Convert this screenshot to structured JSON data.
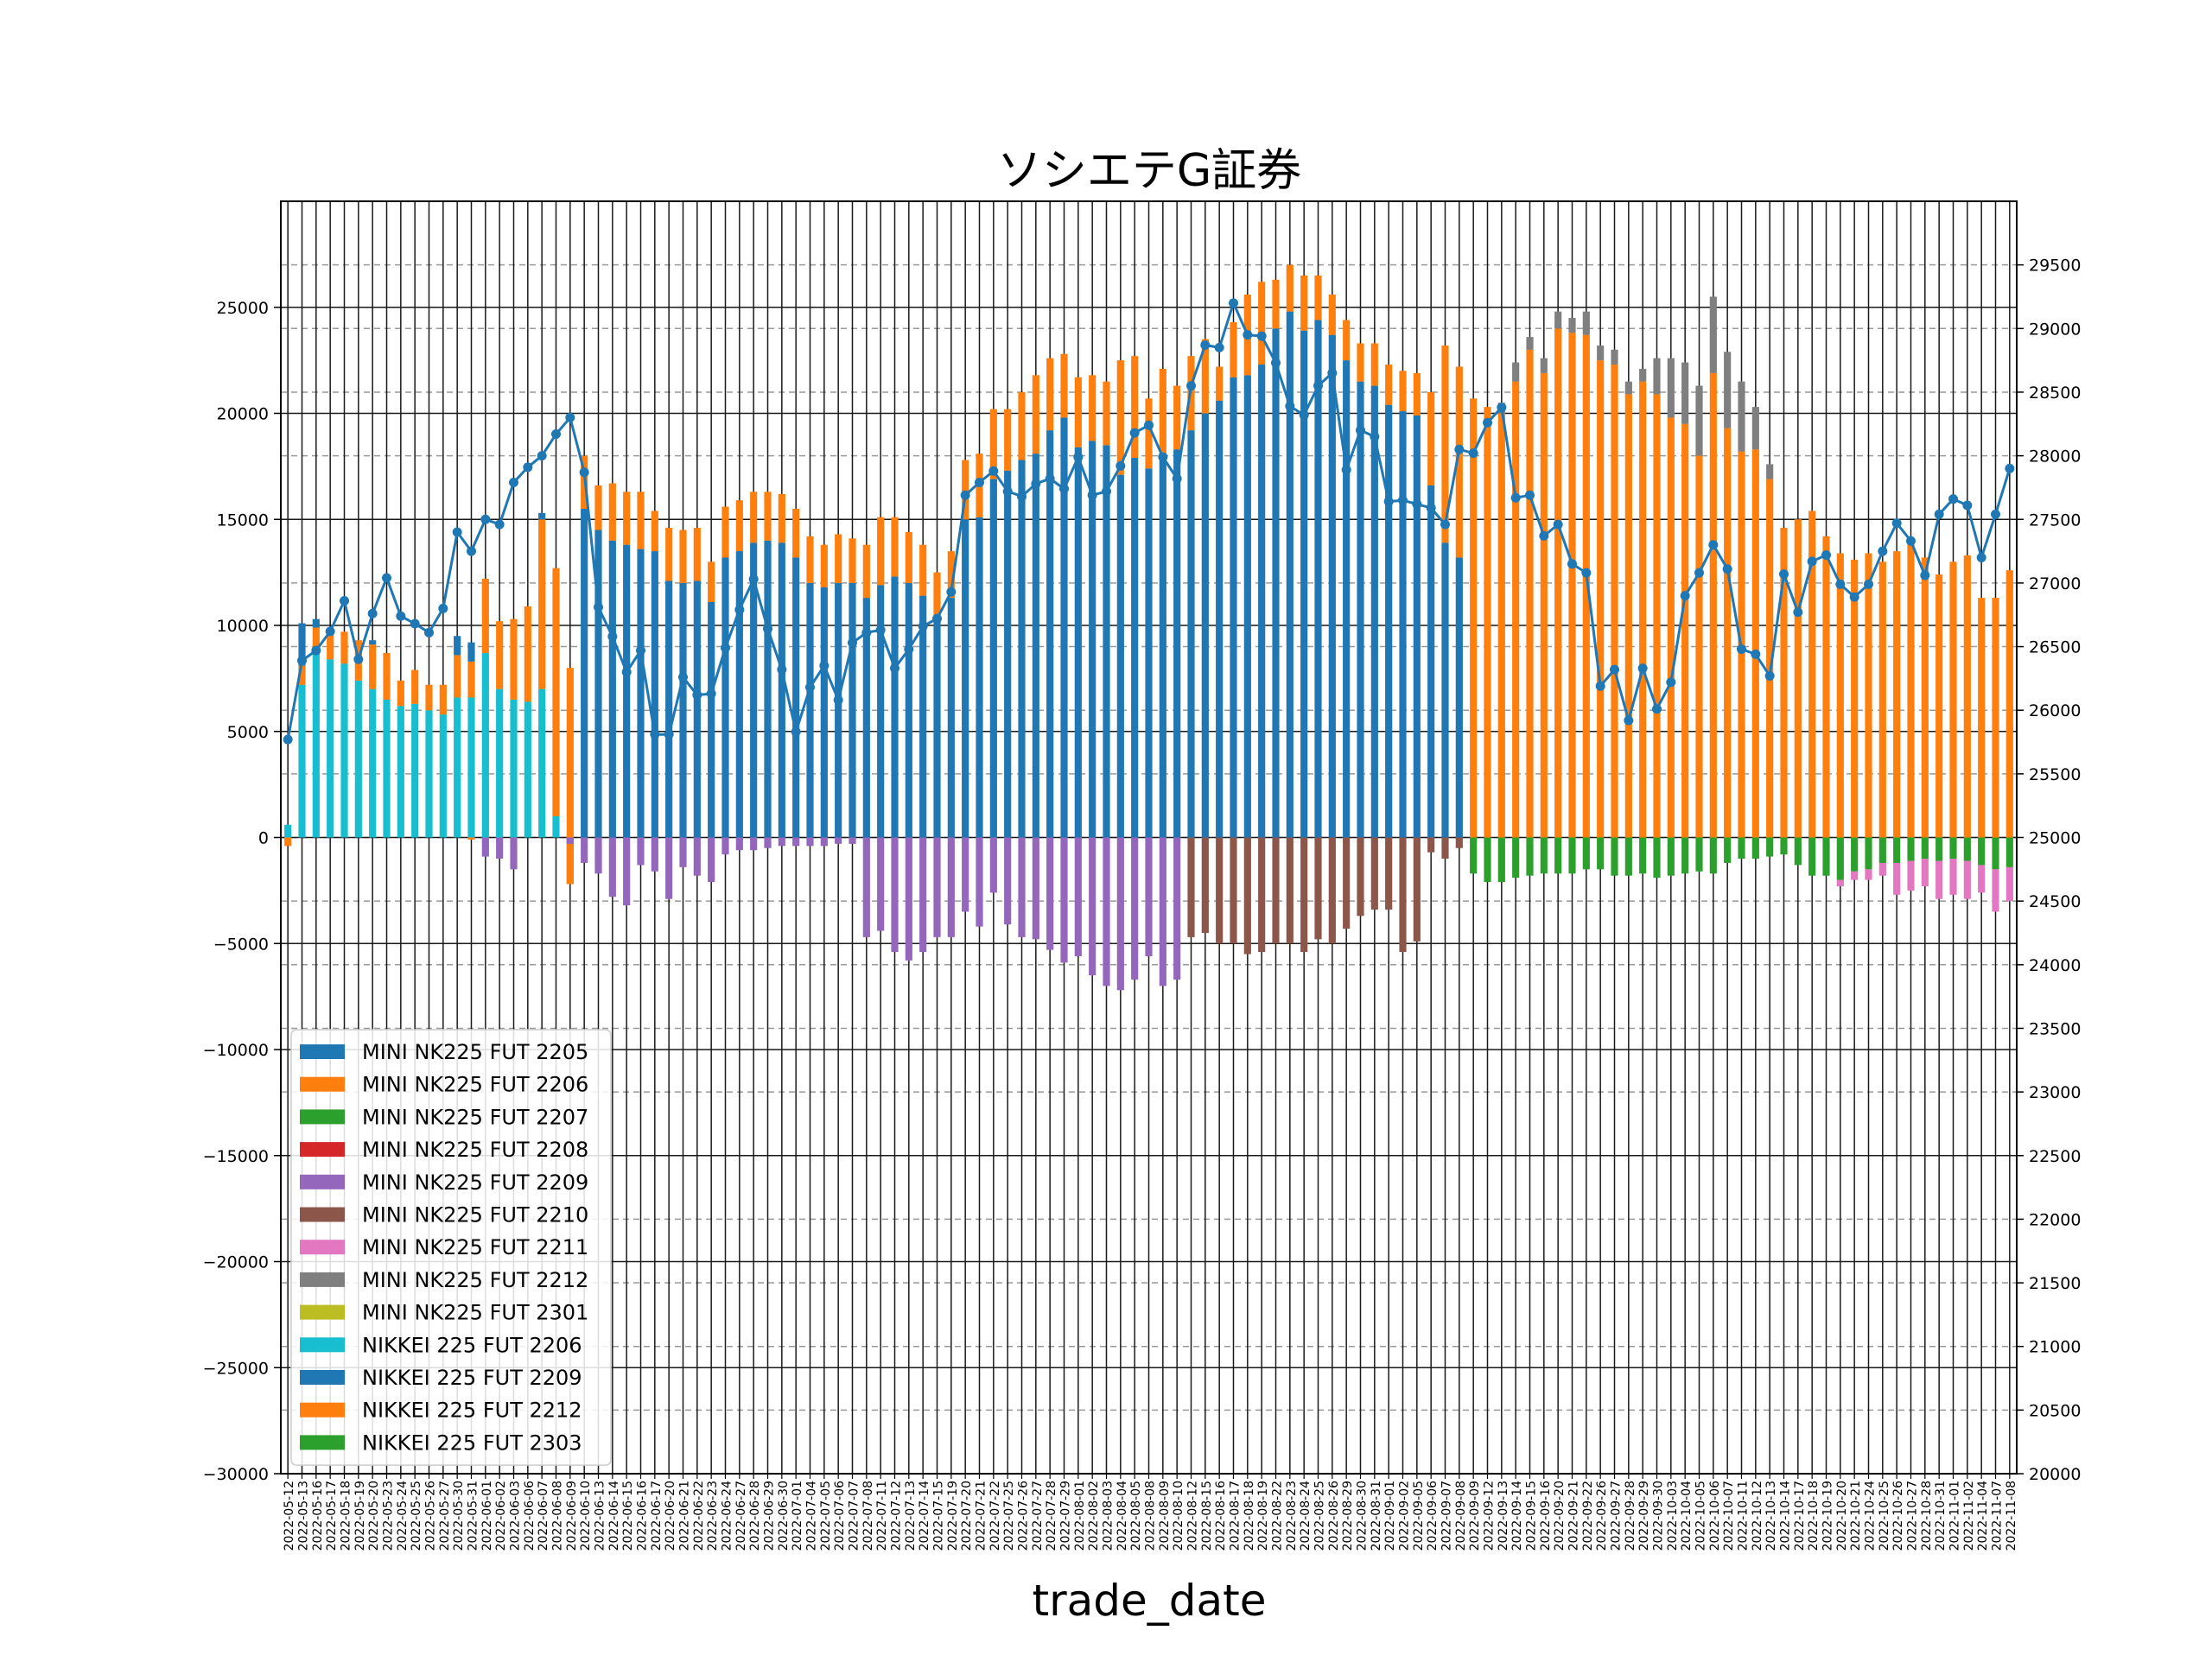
{
  "chart_data": {
    "type": "bar",
    "title": "ソシエテG証券",
    "xlabel": "trade_date",
    "ylabel": "",
    "ylim": [
      -30000,
      30000
    ],
    "yticks": [
      -30000,
      -25000,
      -20000,
      -15000,
      -10000,
      -5000,
      0,
      5000,
      10000,
      15000,
      20000,
      25000
    ],
    "y2lim": [
      20000,
      30000
    ],
    "y2ticks": [
      20000,
      20500,
      21000,
      21500,
      22000,
      22500,
      23000,
      23500,
      24000,
      24500,
      25000,
      25500,
      26000,
      26500,
      27000,
      27500,
      28000,
      28500,
      29000,
      29500
    ],
    "grid": true,
    "stacked": true,
    "legend_position": "lower-left",
    "colors": {
      "MINI NK225 FUT 2205": "#1f77b4",
      "MINI NK225 FUT 2206": "#ff7f0e",
      "MINI NK225 FUT 2207": "#2ca02c",
      "MINI NK225 FUT 2208": "#d62728",
      "MINI NK225 FUT 2209": "#9467bd",
      "MINI NK225 FUT 2210": "#8c564b",
      "MINI NK225 FUT 2211": "#e377c2",
      "MINI NK225 FUT 2212": "#7f7f7f",
      "MINI NK225 FUT 2301": "#bcbd22",
      "NIKKEI 225 FUT 2206": "#17becf",
      "NIKKEI 225 FUT 2209": "#1f77b4",
      "NIKKEI 225 FUT 2212": "#ff7f0e",
      "NIKKEI 225 FUT 2303": "#2ca02c",
      "line": "#1f77b4"
    },
    "legend": [
      "MINI NK225 FUT 2205",
      "MINI NK225 FUT 2206",
      "MINI NK225 FUT 2207",
      "MINI NK225 FUT 2208",
      "MINI NK225 FUT 2209",
      "MINI NK225 FUT 2210",
      "MINI NK225 FUT 2211",
      "MINI NK225 FUT 2212",
      "MINI NK225 FUT 2301",
      "NIKKEI 225 FUT 2206",
      "NIKKEI 225 FUT 2209",
      "NIKKEI 225 FUT 2212",
      "NIKKEI 225 FUT 2303"
    ],
    "categories": [
      "2022-05-12",
      "2022-05-13",
      "2022-05-16",
      "2022-05-17",
      "2022-05-18",
      "2022-05-19",
      "2022-05-20",
      "2022-05-23",
      "2022-05-24",
      "2022-05-25",
      "2022-05-26",
      "2022-05-27",
      "2022-05-30",
      "2022-05-31",
      "2022-06-01",
      "2022-06-02",
      "2022-06-03",
      "2022-06-06",
      "2022-06-07",
      "2022-06-08",
      "2022-06-09",
      "2022-06-10",
      "2022-06-13",
      "2022-06-14",
      "2022-06-15",
      "2022-06-16",
      "2022-06-17",
      "2022-06-20",
      "2022-06-21",
      "2022-06-22",
      "2022-06-23",
      "2022-06-24",
      "2022-06-27",
      "2022-06-28",
      "2022-06-29",
      "2022-06-30",
      "2022-07-01",
      "2022-07-04",
      "2022-07-05",
      "2022-07-06",
      "2022-07-07",
      "2022-07-08",
      "2022-07-11",
      "2022-07-12",
      "2022-07-13",
      "2022-07-14",
      "2022-07-15",
      "2022-07-19",
      "2022-07-20",
      "2022-07-21",
      "2022-07-22",
      "2022-07-25",
      "2022-07-26",
      "2022-07-27",
      "2022-07-28",
      "2022-07-29",
      "2022-08-01",
      "2022-08-02",
      "2022-08-03",
      "2022-08-04",
      "2022-08-05",
      "2022-08-08",
      "2022-08-09",
      "2022-08-10",
      "2022-08-12",
      "2022-08-15",
      "2022-08-16",
      "2022-08-17",
      "2022-08-18",
      "2022-08-19",
      "2022-08-22",
      "2022-08-23",
      "2022-08-24",
      "2022-08-25",
      "2022-08-26",
      "2022-08-29",
      "2022-08-30",
      "2022-08-31",
      "2022-09-01",
      "2022-09-02",
      "2022-09-05",
      "2022-09-06",
      "2022-09-07",
      "2022-09-08",
      "2022-09-09",
      "2022-09-12",
      "2022-09-13",
      "2022-09-14",
      "2022-09-15",
      "2022-09-16",
      "2022-09-20",
      "2022-09-21",
      "2022-09-22",
      "2022-09-26",
      "2022-09-27",
      "2022-09-28",
      "2022-09-29",
      "2022-09-30",
      "2022-10-03",
      "2022-10-04",
      "2022-10-05",
      "2022-10-06",
      "2022-10-07",
      "2022-10-11",
      "2022-10-12",
      "2022-10-13",
      "2022-10-14",
      "2022-10-17",
      "2022-10-18",
      "2022-10-19",
      "2022-10-20",
      "2022-10-21",
      "2022-10-24",
      "2022-10-25",
      "2022-10-26",
      "2022-10-27",
      "2022-10-28",
      "2022-10-31",
      "2022-11-01",
      "2022-11-02",
      "2022-11-04",
      "2022-11-07",
      "2022-11-08"
    ],
    "pos_key": [
      "pa",
      "pb",
      "pc",
      "pd",
      "pe"
    ],
    "phases": [
      {
        "count": 14,
        "pos": [
          [
            "MINI NK225 FUT 2206",
            "pb"
          ],
          [
            "NIKKEI 225 FUT 2206",
            "pa"
          ],
          [
            "NIKKEI 225 FUT 2209",
            "pc"
          ]
        ]
      },
      {
        "count": 7,
        "pos": [
          [
            "MINI NK225 FUT 2206",
            "pb"
          ],
          [
            "NIKKEI 225 FUT 2206",
            "pa"
          ],
          [
            "NIKKEI 225 FUT 2209",
            "pc"
          ]
        ]
      },
      {
        "count": 43,
        "pos": [
          [
            "NIKKEI 225 FUT 2209",
            "pa"
          ],
          [
            "NIKKEI 225 FUT 2212",
            "pb"
          ]
        ]
      },
      {
        "count": 20,
        "pos": [
          [
            "NIKKEI 225 FUT 2209",
            "pa"
          ],
          [
            "NIKKEI 225 FUT 2212",
            "pb"
          ]
        ]
      },
      {
        "count": 0,
        "pos": [
          [
            "MINI NK225 FUT 2212",
            "pe"
          ],
          [
            "NIKKEI 225 FUT 2212",
            "pb"
          ]
        ]
      }
    ],
    "neg_key": [
      "na",
      "nb"
    ],
    "neg_phases": [
      {
        "count": 14,
        "neg": [
          [
            "MINI NK225 FUT 2206",
            "na"
          ]
        ]
      },
      {
        "count": 7,
        "neg": [
          [
            "MINI NK225 FUT 2209",
            "na"
          ]
        ]
      },
      {
        "count": 43,
        "neg": [
          [
            "MINI NK225 FUT 2209",
            "na"
          ],
          [
            "MINI NK225 FUT 2208",
            "nb"
          ]
        ]
      },
      {
        "count": 20,
        "neg": [
          [
            "MINI NK225 FUT 2210",
            "na"
          ]
        ]
      },
      {
        "count": 0,
        "neg": [
          [
            "NIKKEI 225 FUT 2303",
            "na"
          ],
          [
            "MINI NK225 FUT 2211",
            "nb"
          ]
        ]
      }
    ],
    "pa": [
      600,
      7200,
      8900,
      8400,
      8200,
      7400,
      7000,
      6500,
      6200,
      6300,
      6000,
      5800,
      6600,
      6600,
      8700,
      7000,
      6500,
      6400,
      7000,
      1000,
      -2200,
      15500,
      14500,
      14000,
      13800,
      13600,
      13500,
      12100,
      12000,
      12100,
      11100,
      13200,
      13500,
      13900,
      14000,
      13900,
      13200,
      12000,
      11800,
      12000,
      12000,
      11300,
      11900,
      12300,
      12000,
      11400,
      10500,
      11300,
      15000,
      15100,
      16900,
      17300,
      17800,
      18100,
      19200,
      19800,
      18400,
      18700,
      18500,
      17100,
      17900,
      17400,
      17800,
      18300,
      19200,
      20000,
      20600,
      21700,
      21800,
      22300,
      24000,
      24800,
      23900,
      24400,
      23700,
      22500,
      21500,
      21300,
      20400,
      20100,
      19900,
      16600,
      13900,
      13200,
      0,
      0,
      0,
      0,
      0,
      0,
      0,
      0,
      0,
      0,
      0,
      0,
      0,
      0,
      0,
      0,
      0,
      0,
      0,
      0,
      0,
      0,
      0,
      0,
      0,
      0,
      0,
      0,
      0,
      0,
      0,
      0,
      0,
      0,
      0,
      0,
      0,
      0,
      0
    ],
    "pb": [
      0,
      900,
      1000,
      1300,
      1500,
      1900,
      2100,
      2200,
      1200,
      1600,
      1200,
      1400,
      2000,
      1700,
      3500,
      3200,
      3800,
      4500,
      8000,
      11700,
      10200,
      2500,
      2100,
      2700,
      2500,
      2700,
      1900,
      2500,
      2500,
      2500,
      1900,
      2400,
      2400,
      2400,
      2300,
      2300,
      2300,
      2200,
      2000,
      2300,
      2100,
      2500,
      3200,
      2800,
      2400,
      2400,
      2000,
      2200,
      2800,
      3000,
      3300,
      2900,
      3200,
      3700,
      3400,
      3000,
      3300,
      3100,
      3000,
      5400,
      4800,
      3300,
      4300,
      3000,
      3500,
      3500,
      1600,
      2600,
      3800,
      3900,
      2300,
      2200,
      2600,
      2100,
      1900,
      1900,
      1800,
      2000,
      1900,
      1900,
      2000,
      4400,
      9300,
      9000,
      20700,
      20300,
      20000,
      21500,
      23000,
      21900,
      24000,
      23800,
      23700,
      22500,
      22300,
      20900,
      21500,
      20900,
      19800,
      19500,
      18000,
      21900,
      19300,
      18200,
      18300,
      16900,
      14600,
      15000,
      15400,
      14200,
      13400,
      13100,
      13400,
      13000,
      13500,
      14000,
      13200,
      12400,
      13000,
      13300,
      11300,
      11300,
      12600
    ],
    "pc": [
      0,
      2000,
      400,
      0,
      0,
      0,
      200,
      0,
      0,
      0,
      0,
      0,
      900,
      900,
      0,
      0,
      0,
      0,
      300,
      0,
      0,
      0,
      0,
      0,
      0,
      0,
      0,
      0,
      0,
      0,
      0,
      0,
      0,
      0,
      0,
      0,
      0,
      0,
      0,
      0,
      0,
      0,
      0,
      0,
      0,
      0,
      0,
      0,
      0,
      0,
      0,
      0,
      0,
      0,
      0,
      0,
      0,
      0,
      0,
      0,
      0,
      0,
      0,
      0,
      0,
      0,
      0,
      0,
      0,
      0,
      0,
      0,
      0,
      0,
      0,
      0,
      0,
      0,
      0,
      0,
      0,
      0,
      0,
      0,
      0,
      0,
      0,
      0,
      0,
      0,
      0,
      0,
      0,
      0,
      0,
      0,
      0,
      0,
      0,
      0,
      0,
      0,
      0,
      0,
      0,
      0,
      0,
      0,
      0,
      0,
      0,
      0,
      0,
      0,
      0,
      0,
      0,
      0,
      0,
      0,
      0,
      0,
      0
    ],
    "pd": [
      0,
      0,
      0,
      0,
      0,
      0,
      0,
      0,
      0,
      0,
      0,
      0,
      0,
      0,
      0,
      0,
      0,
      0,
      0,
      0,
      0,
      0,
      0,
      0,
      0,
      0,
      0,
      0,
      0,
      0,
      0,
      0,
      0,
      0,
      0,
      0,
      0,
      0,
      0,
      0,
      0,
      0,
      0,
      0,
      0,
      0,
      0,
      0,
      0,
      0,
      0,
      0,
      0,
      0,
      0,
      0,
      0,
      0,
      0,
      0,
      0,
      0,
      0,
      0,
      0,
      0,
      0,
      0,
      0,
      0,
      0,
      0,
      0,
      0,
      0,
      0,
      0,
      0,
      0,
      0,
      0,
      0,
      0,
      0,
      0,
      0,
      0,
      0,
      0,
      0,
      0,
      0,
      0,
      0,
      0,
      0,
      0,
      0,
      0,
      0,
      0,
      0,
      0,
      0,
      0,
      0,
      0,
      0,
      0,
      0,
      0,
      0,
      0,
      0,
      0,
      0,
      0,
      0,
      0,
      0,
      0,
      0,
      0
    ],
    "pe": [
      0,
      0,
      0,
      0,
      0,
      0,
      0,
      0,
      0,
      0,
      0,
      0,
      0,
      0,
      0,
      0,
      0,
      0,
      0,
      0,
      0,
      0,
      0,
      0,
      0,
      0,
      0,
      0,
      0,
      0,
      0,
      0,
      0,
      0,
      0,
      0,
      0,
      0,
      0,
      0,
      0,
      0,
      0,
      0,
      0,
      0,
      0,
      0,
      0,
      0,
      0,
      0,
      0,
      0,
      0,
      0,
      0,
      0,
      0,
      0,
      0,
      0,
      0,
      0,
      0,
      0,
      0,
      0,
      0,
      0,
      0,
      0,
      0,
      0,
      0,
      0,
      0,
      0,
      0,
      0,
      0,
      0,
      0,
      0,
      0,
      0,
      500,
      900,
      600,
      700,
      800,
      700,
      1100,
      700,
      700,
      600,
      600,
      1700,
      2800,
      2900,
      3300,
      3600,
      3600,
      3300,
      2000,
      700,
      0,
      0,
      0,
      0,
      0,
      0,
      0,
      0,
      0,
      0,
      0,
      0,
      0,
      0,
      0,
      0
    ],
    "na": [
      -400,
      0,
      0,
      0,
      0,
      0,
      0,
      0,
      0,
      0,
      0,
      0,
      0,
      -100,
      -900,
      -1000,
      -1500,
      0,
      0,
      0,
      -300,
      -1200,
      -1700,
      -2800,
      -3200,
      -1300,
      -1600,
      -2900,
      -1400,
      -1800,
      -2100,
      -800,
      -600,
      -600,
      -500,
      -400,
      -400,
      -400,
      -400,
      -300,
      -300,
      -4700,
      -4400,
      -5400,
      -5800,
      -5400,
      -4700,
      -4700,
      -3500,
      -4200,
      -2600,
      -4100,
      -4700,
      -4800,
      -5300,
      -5900,
      -5600,
      -6500,
      -7000,
      -7200,
      -6700,
      -5600,
      -7000,
      -6700,
      -4700,
      -4500,
      -5000,
      -5000,
      -5500,
      -5400,
      -5000,
      -5000,
      -5400,
      -4800,
      -5000,
      -4300,
      -3700,
      -3400,
      -3400,
      -5400,
      -4900,
      -700,
      -1000,
      -500,
      -1700,
      -2100,
      -2100,
      -1900,
      -1800,
      -1700,
      -1700,
      -1700,
      -1500,
      -1500,
      -1800,
      -1800,
      -1700,
      -1900,
      -1800,
      -1700,
      -1600,
      -1700,
      -1200,
      -1000,
      -1000,
      -900,
      -800,
      -1300,
      -1800,
      -1800,
      -2000,
      -1600,
      -1500,
      -1200,
      -1200,
      -1100,
      -1000,
      -1100,
      -1000,
      -1100,
      -1300,
      -1500,
      -1400
    ],
    "nb": [
      0,
      0,
      0,
      0,
      0,
      0,
      0,
      0,
      0,
      0,
      0,
      0,
      0,
      0,
      0,
      0,
      0,
      0,
      0,
      0,
      0,
      0,
      0,
      0,
      0,
      0,
      0,
      0,
      0,
      0,
      0,
      0,
      0,
      0,
      0,
      0,
      0,
      0,
      0,
      0,
      0,
      0,
      0,
      0,
      0,
      0,
      0,
      0,
      0,
      0,
      0,
      0,
      0,
      0,
      0,
      0,
      0,
      0,
      0,
      0,
      0,
      0,
      0,
      0,
      0,
      0,
      0,
      0,
      0,
      0,
      0,
      0,
      0,
      0,
      0,
      0,
      0,
      0,
      0,
      0,
      0,
      0,
      0,
      0,
      0,
      0,
      0,
      0,
      0,
      0,
      0,
      0,
      0,
      0,
      0,
      0,
      0,
      0,
      0,
      0,
      0,
      0,
      0,
      0,
      0,
      0,
      0,
      0,
      0,
      0,
      -300,
      -400,
      -500,
      -600,
      -1500,
      -1400,
      -1300,
      -1800,
      -1700,
      -1800,
      -1300,
      -2000,
      -1600
    ],
    "line": [
      25770,
      26390,
      26470,
      26620,
      26860,
      26400,
      26760,
      27040,
      26740,
      26680,
      26610,
      26800,
      27400,
      27250,
      27500,
      27460,
      27790,
      27910,
      28000,
      28170,
      28300,
      27870,
      26810,
      26580,
      26300,
      26470,
      25810,
      25810,
      26260,
      26120,
      26130,
      26490,
      26790,
      27030,
      26640,
      26320,
      25830,
      26180,
      26350,
      26080,
      26530,
      26610,
      26630,
      26330,
      26480,
      26660,
      26720,
      26930,
      27690,
      27790,
      27880,
      27720,
      27680,
      27780,
      27820,
      27740,
      27990,
      27690,
      27720,
      27920,
      28180,
      28240,
      27990,
      27820,
      28550,
      28870,
      28850,
      29200,
      28950,
      28940,
      28730,
      28390,
      28320,
      28550,
      28650,
      27890,
      28200,
      28150,
      27640,
      27650,
      27620,
      27590,
      27460,
      28050,
      28020,
      28260,
      28380,
      27670,
      27690,
      27370,
      27460,
      27150,
      27080,
      26190,
      26320,
      25920,
      26330,
      26010,
      26220,
      26900,
      27080,
      27300,
      27110,
      26480,
      26440,
      26270,
      27070,
      26770,
      27170,
      27220,
      26990,
      26890,
      26990,
      27250,
      27470,
      27330,
      27060,
      27540,
      27660,
      27610,
      27200,
      27540,
      27900
    ]
  }
}
